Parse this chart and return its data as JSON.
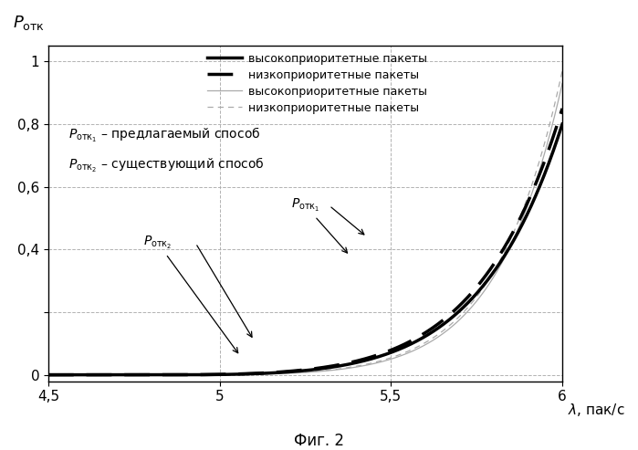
{
  "xlim": [
    4.5,
    6.0
  ],
  "ylim": [
    -0.02,
    1.05
  ],
  "xticks": [
    4.5,
    5.0,
    5.5,
    6.0
  ],
  "xtick_labels": [
    "4,5",
    "5",
    "5,5",
    "6"
  ],
  "yticks": [
    0,
    0.2,
    0.4,
    0.6,
    0.8,
    1.0
  ],
  "ytick_labels": [
    "0",
    "",
    "0,4",
    "0,6",
    "0,8",
    "1"
  ],
  "ylabel": "P_отк",
  "xlabel": "λ, пак/с",
  "fig_label": "Фиг. 2",
  "legend_entries": [
    {
      "label": "высокоприоритетные пакеты",
      "lw": 2.5,
      "ls": "solid",
      "color": "#000000"
    },
    {
      "label": "низкоприоритетные пакеты",
      "lw": 2.5,
      "ls": "dashed",
      "color": "#000000"
    },
    {
      "label": "высокоприоритетные пакеты",
      "lw": 0.9,
      "ls": "solid",
      "color": "#999999"
    },
    {
      "label": "низкоприоритетные пакеты",
      "lw": 0.9,
      "ls": "dashed",
      "color": "#999999"
    }
  ],
  "text1": "P_отк₁ – предлагаемый способ",
  "text2": "P_отк₂ – существующий способ",
  "background_color": "#ffffff",
  "grid_color": "#aaaaaa",
  "curve_params": {
    "thick_solid": {
      "a": 5.5,
      "b": 1.8,
      "scale": 0.8
    },
    "thick_dashed": {
      "a": 5.45,
      "b": 1.8,
      "scale": 0.82
    },
    "thin_solid": {
      "a": 5.8,
      "b": 2.5,
      "scale": 1.1
    },
    "thin_dashed": {
      "a": 5.65,
      "b": 2.5,
      "scale": 1.1
    }
  }
}
